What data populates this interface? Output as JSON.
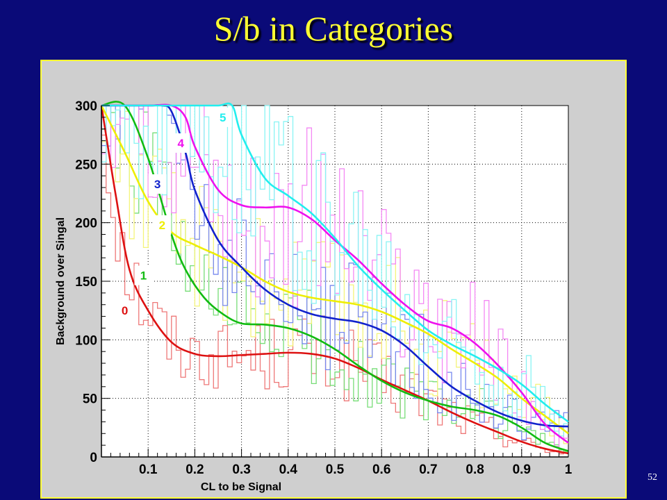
{
  "slide": {
    "title": "S/b in Categories",
    "page_number": "52"
  },
  "colors": {
    "background": "#0a0a78",
    "title": "#ffff33",
    "canvas": "#cfcfcf",
    "plot_area": "#ffffff"
  },
  "chart_data": {
    "type": "line",
    "title": "",
    "xlabel": "CL to be Signal",
    "ylabel": "Background over Singal",
    "xlim": [
      0,
      1
    ],
    "ylim": [
      0,
      300
    ],
    "x_ticks": [
      0.1,
      0.2,
      0.3,
      0.4,
      0.5,
      0.6,
      0.7,
      0.8,
      0.9,
      1
    ],
    "x_tick_labels": [
      "0.1",
      "0.2",
      "0.3",
      "0.4",
      "0.5",
      "0.6",
      "0.7",
      "0.8",
      "0.9",
      "1"
    ],
    "y_ticks": [
      0,
      50,
      100,
      150,
      200,
      250,
      300
    ],
    "y_tick_labels": [
      "0",
      "50",
      "100",
      "150",
      "200",
      "250",
      "300"
    ],
    "grid": true,
    "legend": "inline labels",
    "series": [
      {
        "label": "0",
        "color": "#dd1111",
        "hist_color": "#ee7777",
        "x": [
          0,
          0.03,
          0.06,
          0.1,
          0.15,
          0.2,
          0.25,
          0.3,
          0.35,
          0.4,
          0.45,
          0.5,
          0.55,
          0.6,
          0.65,
          0.7,
          0.75,
          0.8,
          0.85,
          0.9,
          0.95,
          1
        ],
        "y": [
          300,
          225,
          160,
          125,
          98,
          88,
          86,
          87,
          88,
          89,
          88,
          84,
          76,
          66,
          57,
          48,
          38,
          29,
          21,
          13,
          7,
          3
        ]
      },
      {
        "label": "1",
        "color": "#11bb11",
        "hist_color": "#77dd77",
        "x": [
          0,
          0.05,
          0.1,
          0.15,
          0.18,
          0.22,
          0.26,
          0.3,
          0.35,
          0.4,
          0.45,
          0.5,
          0.55,
          0.6,
          0.65,
          0.7,
          0.75,
          0.8,
          0.85,
          0.9,
          0.95,
          1
        ],
        "y": [
          300,
          300,
          255,
          190,
          160,
          136,
          122,
          114,
          113,
          110,
          103,
          92,
          78,
          65,
          55,
          48,
          43,
          40,
          35,
          25,
          12,
          5
        ]
      },
      {
        "label": "2",
        "color": "#eeee00",
        "hist_color": "#f4f47a",
        "x": [
          0,
          0.05,
          0.1,
          0.15,
          0.2,
          0.25,
          0.3,
          0.35,
          0.4,
          0.45,
          0.5,
          0.55,
          0.6,
          0.65,
          0.7,
          0.75,
          0.8,
          0.85,
          0.9,
          0.95,
          1
        ],
        "y": [
          300,
          260,
          218,
          192,
          181,
          172,
          162,
          150,
          141,
          136,
          133,
          130,
          124,
          115,
          105,
          92,
          80,
          67,
          50,
          35,
          20
        ]
      },
      {
        "label": "3",
        "color": "#1122cc",
        "hist_color": "#7788ee",
        "x": [
          0,
          0.1,
          0.13,
          0.15,
          0.18,
          0.2,
          0.25,
          0.3,
          0.35,
          0.4,
          0.45,
          0.5,
          0.55,
          0.6,
          0.65,
          0.7,
          0.75,
          0.8,
          0.85,
          0.9,
          0.95,
          1
        ],
        "y": [
          300,
          300,
          300,
          295,
          260,
          228,
          185,
          162,
          143,
          130,
          122,
          118,
          115,
          108,
          95,
          77,
          60,
          48,
          38,
          31,
          27,
          26
        ]
      },
      {
        "label": "4",
        "color": "#ee11ee",
        "hist_color": "#f488f4",
        "x": [
          0,
          0.1,
          0.15,
          0.18,
          0.2,
          0.25,
          0.3,
          0.35,
          0.4,
          0.45,
          0.5,
          0.55,
          0.6,
          0.65,
          0.7,
          0.75,
          0.8,
          0.85,
          0.9,
          0.95,
          1
        ],
        "y": [
          300,
          300,
          300,
          290,
          265,
          228,
          215,
          213,
          213,
          203,
          185,
          168,
          148,
          130,
          116,
          110,
          97,
          78,
          55,
          28,
          12
        ]
      },
      {
        "label": "5",
        "color": "#22eeee",
        "hist_color": "#88f4f4",
        "x": [
          0,
          0.1,
          0.2,
          0.25,
          0.28,
          0.3,
          0.35,
          0.4,
          0.45,
          0.5,
          0.55,
          0.6,
          0.65,
          0.7,
          0.75,
          0.8,
          0.85,
          0.9,
          0.95,
          1
        ],
        "y": [
          300,
          300,
          300,
          300,
          300,
          275,
          238,
          223,
          208,
          187,
          163,
          143,
          125,
          108,
          96,
          86,
          75,
          62,
          45,
          30
        ]
      }
    ]
  }
}
